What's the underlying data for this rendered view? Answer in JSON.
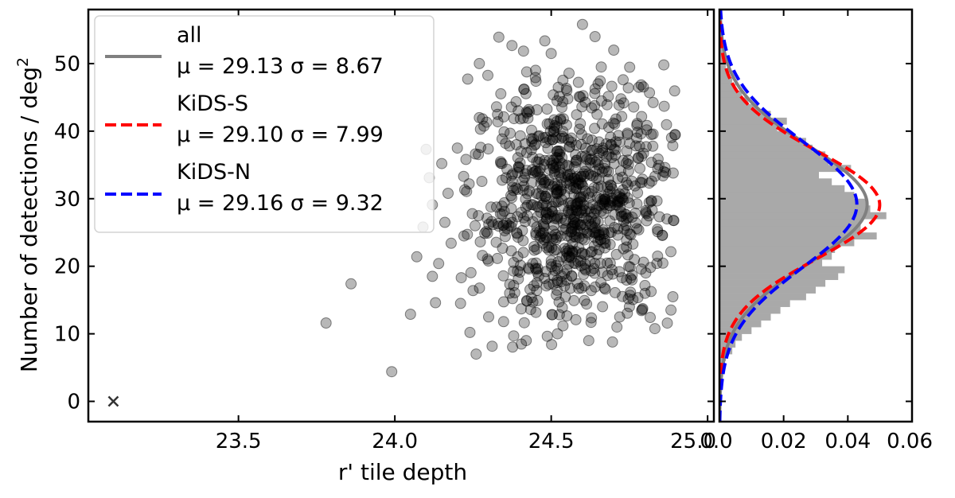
{
  "chart_data": [
    {
      "type": "scatter",
      "xlabel": "r' tile depth",
      "ylabel": "Number of detections / deg",
      "ylabel_sup": "2",
      "xlim": [
        23.02,
        25.02
      ],
      "ylim": [
        -3,
        58
      ],
      "xticks": [
        23.5,
        24.0,
        24.5,
        25.0
      ],
      "xtick_labels": [
        "23.5",
        "24.0",
        "24.5",
        ""
      ],
      "yticks": [
        0,
        10,
        20,
        30,
        40,
        50
      ],
      "ytick_labels": [
        "0",
        "10",
        "20",
        "30",
        "40",
        "50"
      ],
      "grid": false,
      "marker_color": "#000000",
      "marker_opacity": 0.28,
      "cross_marker": {
        "x": 23.1,
        "y": 0,
        "symbol": "x",
        "color": "#333333"
      },
      "cloud": {
        "x_mean": 24.57,
        "x_std": 0.16,
        "y_mean": 29.13,
        "y_std": 8.67,
        "count": 900
      },
      "points": [
        {
          "x": 23.78,
          "y": 11.6
        },
        {
          "x": 23.86,
          "y": 17.4
        },
        {
          "x": 23.99,
          "y": 4.4
        },
        {
          "x": 24.05,
          "y": 12.9
        },
        {
          "x": 24.07,
          "y": 21.4
        },
        {
          "x": 24.09,
          "y": 25.8
        },
        {
          "x": 24.1,
          "y": 37.3
        },
        {
          "x": 24.11,
          "y": 33.1
        },
        {
          "x": 24.12,
          "y": 18.5
        },
        {
          "x": 24.12,
          "y": 29.1
        },
        {
          "x": 24.13,
          "y": 14.6
        },
        {
          "x": 24.14,
          "y": 20.4
        },
        {
          "x": 24.15,
          "y": 35.2
        },
        {
          "x": 24.16,
          "y": 26.5
        },
        {
          "x": 24.17,
          "y": 30.8
        },
        {
          "x": 24.18,
          "y": 23.4
        },
        {
          "x": 24.2,
          "y": 37.5
        },
        {
          "x": 24.21,
          "y": 14.5
        },
        {
          "x": 24.22,
          "y": 33.3
        },
        {
          "x": 24.24,
          "y": 10.2
        },
        {
          "x": 24.25,
          "y": 16.4
        },
        {
          "x": 24.26,
          "y": 7.0
        },
        {
          "x": 24.27,
          "y": 50.0
        },
        {
          "x": 24.27,
          "y": 42.0
        },
        {
          "x": 24.28,
          "y": 21.6
        },
        {
          "x": 24.3,
          "y": 12.5
        },
        {
          "x": 24.38,
          "y": 9.7
        },
        {
          "x": 24.42,
          "y": 9.0
        },
        {
          "x": 24.45,
          "y": 49.0
        },
        {
          "x": 24.5,
          "y": 51.5
        },
        {
          "x": 24.52,
          "y": 10.0
        },
        {
          "x": 24.55,
          "y": 46.0
        },
        {
          "x": 24.6,
          "y": 55.8
        },
        {
          "x": 24.62,
          "y": 9.0
        },
        {
          "x": 24.64,
          "y": 54.0
        },
        {
          "x": 24.66,
          "y": 49.5
        },
        {
          "x": 24.7,
          "y": 52.0
        },
        {
          "x": 24.71,
          "y": 11.0
        },
        {
          "x": 24.73,
          "y": 47.6
        },
        {
          "x": 24.75,
          "y": 14.0
        },
        {
          "x": 24.78,
          "y": 46.5
        },
        {
          "x": 24.8,
          "y": 16.0
        },
        {
          "x": 24.82,
          "y": 39.5
        },
        {
          "x": 24.84,
          "y": 21.5
        },
        {
          "x": 24.86,
          "y": 34.0
        },
        {
          "x": 24.86,
          "y": 49.8
        },
        {
          "x": 24.87,
          "y": 27.0
        },
        {
          "x": 24.89,
          "y": 33.8
        }
      ],
      "legend": {
        "position": "upper-left",
        "entries": [
          {
            "label": "all",
            "stats": "μ = 29.13 σ = 8.67",
            "color": "#808080",
            "style": "solid"
          },
          {
            "label": "KiDS-S",
            "stats": "μ = 29.10 σ = 7.99",
            "color": "#ff0000",
            "style": "dashed"
          },
          {
            "label": "KiDS-N",
            "stats": "μ = 29.16 σ = 9.32",
            "color": "#0000ff",
            "style": "dashed"
          }
        ]
      }
    },
    {
      "type": "histogram",
      "orientation": "horizontal",
      "xlim": [
        0,
        0.06
      ],
      "ylim": [
        -3,
        58
      ],
      "xticks": [
        0.0,
        0.02,
        0.04,
        0.06
      ],
      "xtick_labels": [
        "0.0",
        "0.02",
        "0.04",
        "0.06"
      ],
      "bar_color": "#a9a9a9",
      "bin_width": 1,
      "bins_start": 5,
      "densities": [
        0.001,
        0.002,
        0.004,
        0.005,
        0.007,
        0.01,
        0.013,
        0.016,
        0.019,
        0.022,
        0.027,
        0.03,
        0.033,
        0.037,
        0.039,
        0.032,
        0.035,
        0.036,
        0.042,
        0.049,
        0.044,
        0.044,
        0.052,
        0.047,
        0.046,
        0.042,
        0.039,
        0.035,
        0.031,
        0.041,
        0.034,
        0.033,
        0.029,
        0.027,
        0.022,
        0.018,
        0.021,
        0.016,
        0.012,
        0.009,
        0.007,
        0.005,
        0.004,
        0.003,
        0.002,
        0.002,
        0.001,
        0.001,
        0.001,
        0.001,
        0.001
      ],
      "fits": [
        {
          "name": "all",
          "mu": 29.13,
          "sigma": 8.67,
          "color": "#808080",
          "style": "solid"
        },
        {
          "name": "KiDS-S",
          "mu": 29.1,
          "sigma": 7.99,
          "color": "#ff0000",
          "style": "dashed"
        },
        {
          "name": "KiDS-N",
          "mu": 29.16,
          "sigma": 9.32,
          "color": "#0000ff",
          "style": "dashed"
        }
      ]
    }
  ]
}
